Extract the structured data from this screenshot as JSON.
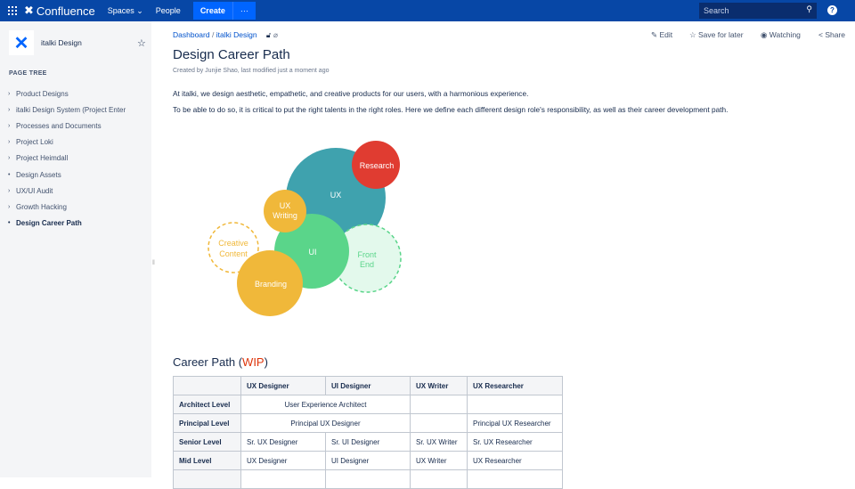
{
  "topbar": {
    "product": "Confluence",
    "spaces": "Spaces",
    "people": "People",
    "create": "Create",
    "more": "···",
    "search_placeholder": "Search",
    "help": "?"
  },
  "sidebar": {
    "space_name": "italki Design",
    "page_tree_label": "PAGE TREE",
    "items": [
      {
        "label": "Product Designs"
      },
      {
        "label": "italki Design System (Project Enter"
      },
      {
        "label": "Processes and Documents"
      },
      {
        "label": "Project Loki"
      },
      {
        "label": "Project Heimdall"
      },
      {
        "label": "Design Assets"
      },
      {
        "label": "UX/UI Audit"
      },
      {
        "label": "Growth Hacking"
      },
      {
        "label": "Design Career Path",
        "selected": true
      }
    ]
  },
  "breadcrumb": {
    "items": [
      "Dashboard",
      "italki Design"
    ],
    "sep": "/"
  },
  "actions": {
    "edit": "Edit",
    "save": "Save for later",
    "watching": "Watching",
    "share": "Share"
  },
  "page": {
    "title": "Design Career Path",
    "meta": "Created by Junjie Shao, last modified just a moment ago",
    "p1": "At italki, we design aesthetic, empathetic, and creative products for our users, with a harmonious experience.",
    "p2": "To be able to do so, it is critical to put the right talents in the right roles. Here we define each different design role's responsibility, as well as their career development path."
  },
  "diagram": {
    "ux": "UX",
    "research": "Research",
    "ux_writing_1": "UX",
    "ux_writing_2": "Writing",
    "ui": "UI",
    "front_end_1": "Front",
    "front_end_2": "End",
    "creative_1": "Creative",
    "creative_2": "Content",
    "branding": "Branding",
    "colors": {
      "ux": "#3fa2ae",
      "research": "#e03c31",
      "yellow": "#f0b83a",
      "ui": "#5ad58a",
      "front_end_fill": "#e3f9ec"
    }
  },
  "career": {
    "heading": "Career Path (",
    "wip": "WIP",
    "close": ")",
    "headers": [
      "",
      "UX Designer",
      "UI Designer",
      "UX Writer",
      "UX Researcher"
    ],
    "rows": [
      {
        "level": "Architect Level",
        "span": "User Experience Architect",
        "writer": "",
        "researcher": ""
      },
      {
        "level": "Principal Level",
        "span": "Principal UX Designer",
        "writer": "",
        "researcher": "Principal UX Researcher"
      },
      {
        "level": "Senior Level",
        "cells": [
          "Sr. UX Designer",
          "Sr. UI Designer",
          "Sr. UX Writer",
          "Sr. UX Researcher"
        ]
      },
      {
        "level": "Mid Level",
        "cells": [
          "UX Designer",
          "UI Designer",
          "UX Writer",
          "UX Researcher"
        ]
      }
    ]
  }
}
